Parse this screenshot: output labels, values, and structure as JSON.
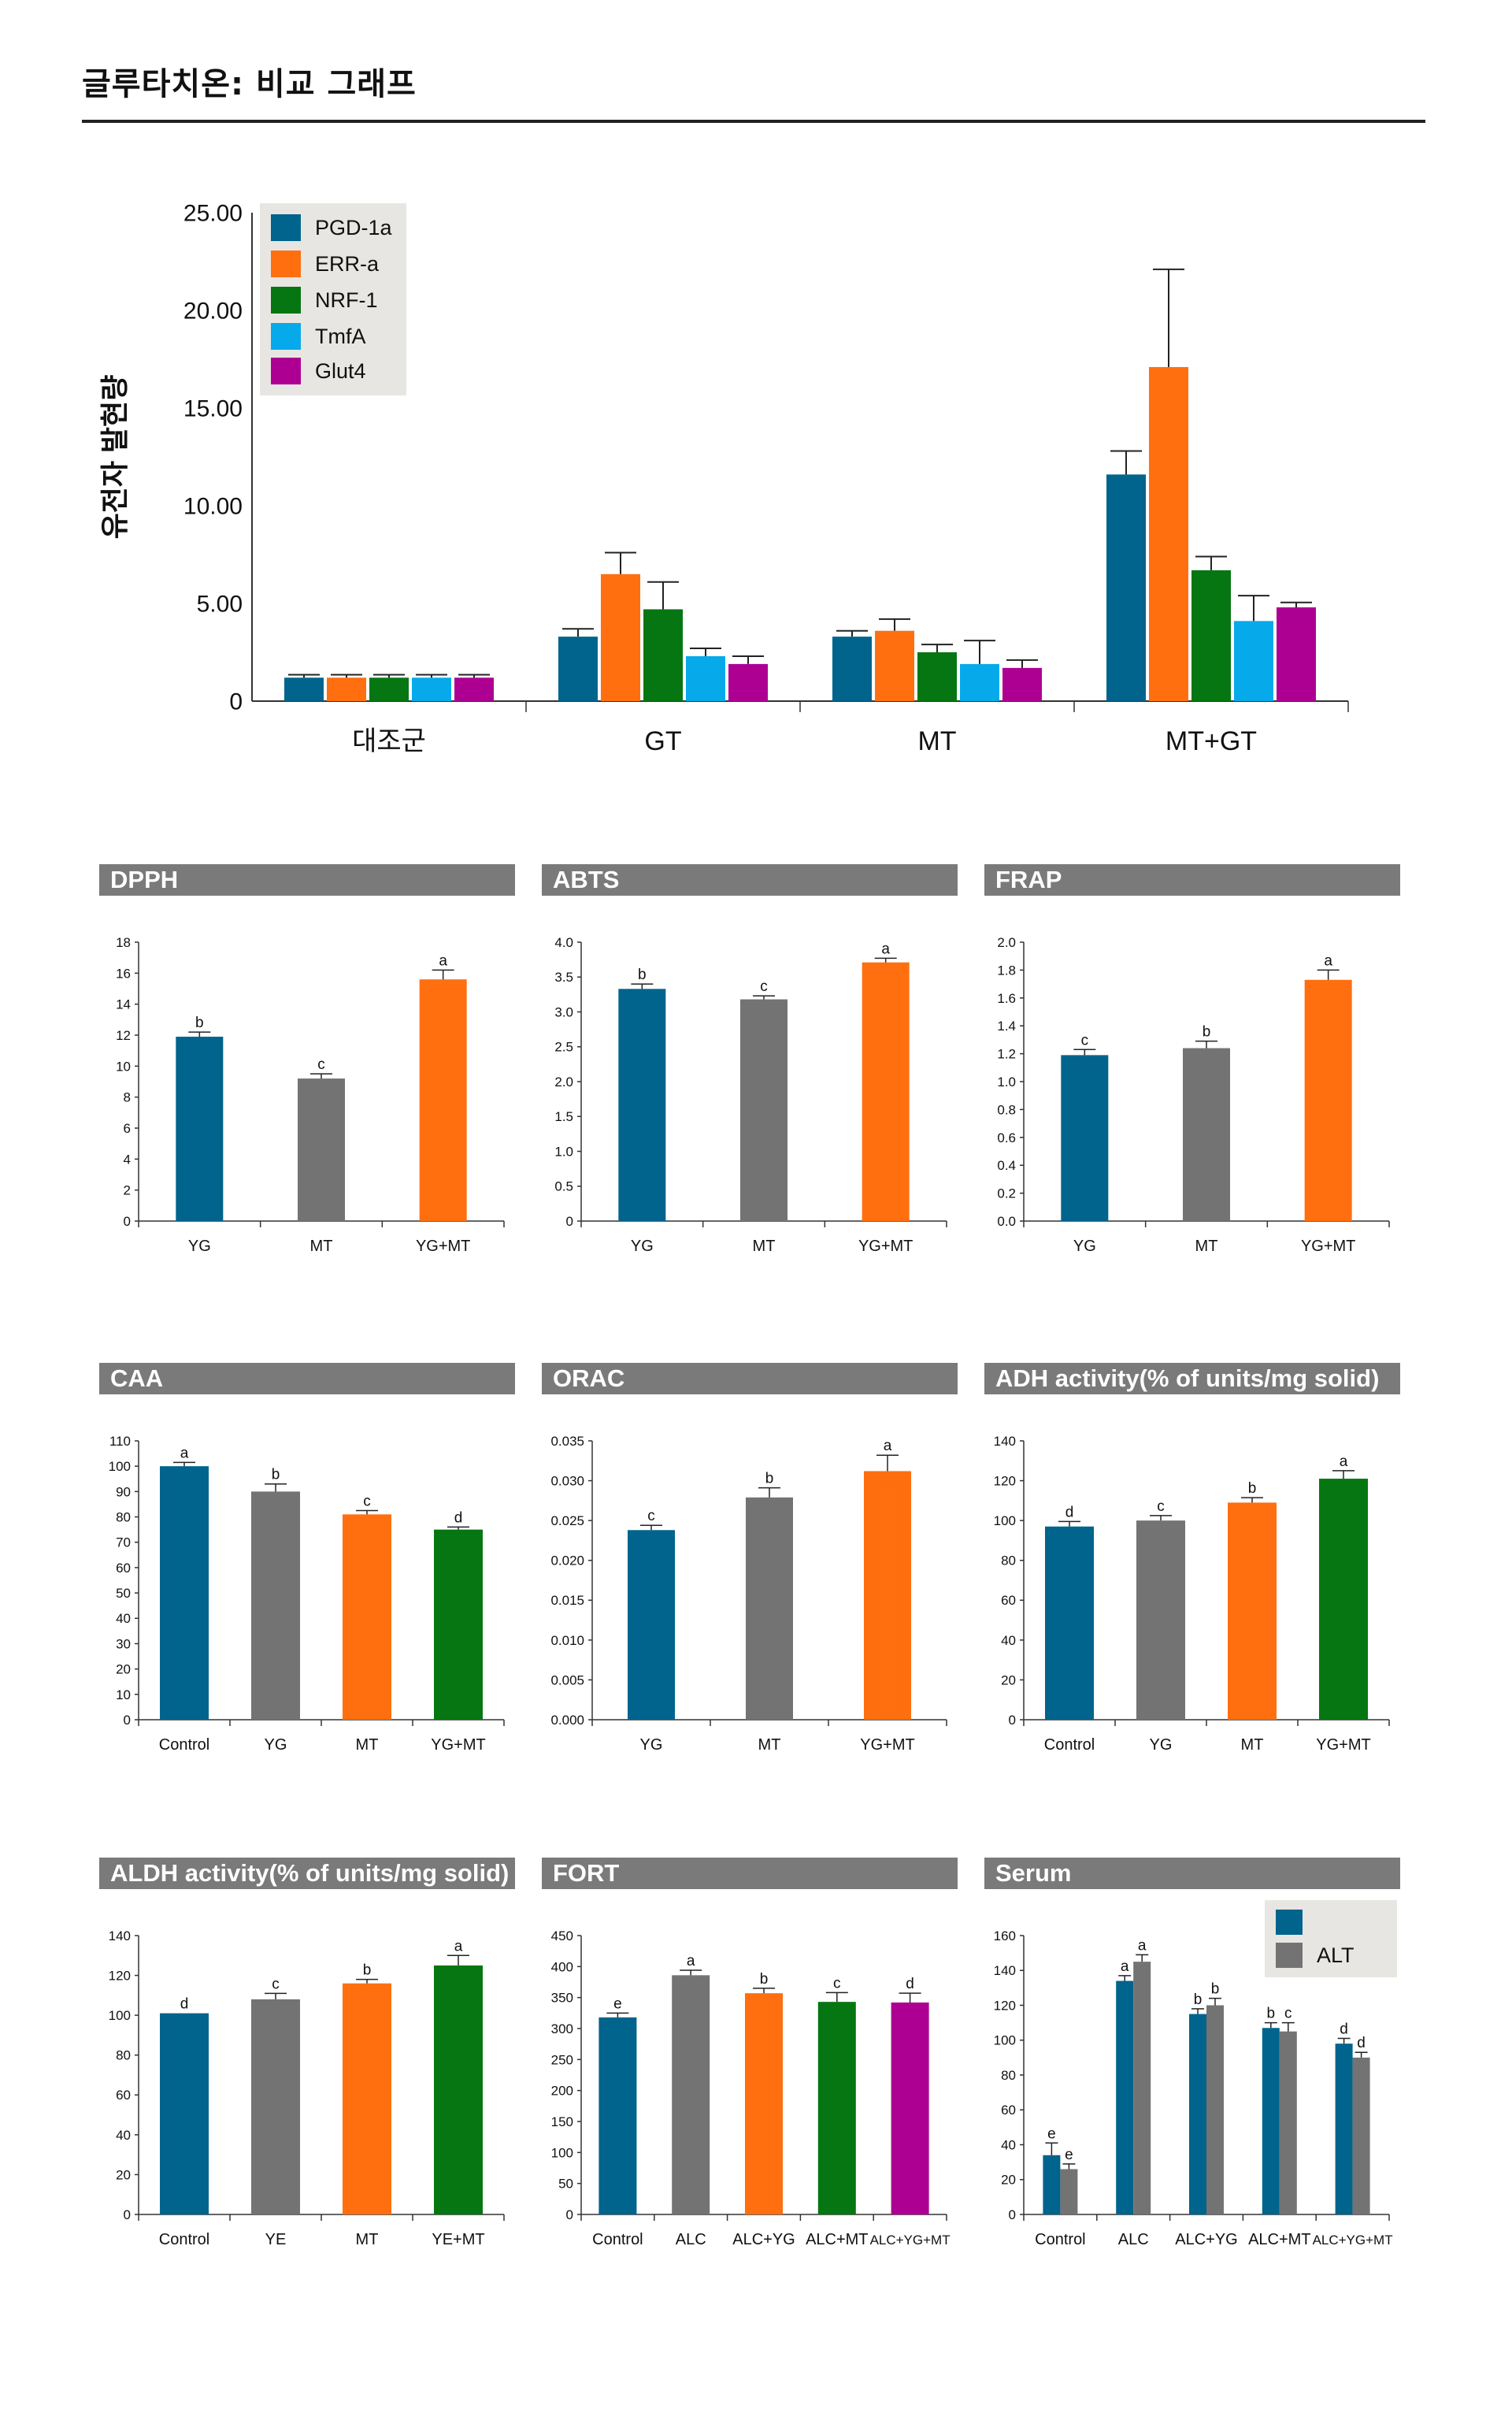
{
  "page": {
    "title": "글루타치온: 비교 그래프"
  },
  "colors": {
    "blue": "#00648c",
    "orange": "#ff6f0f",
    "green": "#067612",
    "cyan": "#06aaeb",
    "magenta": "#ad0092",
    "gray": "#737373",
    "header": "#7a7a7a"
  },
  "chart_data": [
    {
      "id": "main",
      "type": "bar",
      "title": "",
      "xlabel": "",
      "ylabel": "유전자 발현량",
      "categories": [
        "대조군",
        "GT",
        "MT",
        "MT+GT"
      ],
      "ylim": [
        0,
        25
      ],
      "yticks": [
        "0",
        "5.00",
        "10.00",
        "15.00",
        "20.00",
        "25.00"
      ],
      "legend_position": "top-left",
      "series": [
        {
          "name": "PGD-1a",
          "color": "blue",
          "values": [
            1.2,
            3.3,
            3.3,
            11.6
          ],
          "errors": [
            0.15,
            0.4,
            0.3,
            1.2
          ]
        },
        {
          "name": "ERR-a",
          "color": "orange",
          "values": [
            1.2,
            6.5,
            3.6,
            17.1
          ],
          "errors": [
            0.15,
            1.1,
            0.6,
            5.0
          ]
        },
        {
          "name": "NRF-1",
          "color": "green",
          "values": [
            1.2,
            4.7,
            2.5,
            6.7
          ],
          "errors": [
            0.15,
            1.4,
            0.4,
            0.7
          ]
        },
        {
          "name": "TmfA",
          "color": "cyan",
          "values": [
            1.2,
            2.3,
            1.9,
            4.1
          ],
          "errors": [
            0.15,
            0.4,
            1.2,
            1.3
          ]
        },
        {
          "name": "Glut4",
          "color": "magenta",
          "values": [
            1.2,
            1.9,
            1.7,
            4.8
          ],
          "errors": [
            0.15,
            0.4,
            0.4,
            0.25
          ]
        }
      ]
    },
    {
      "id": "dpph",
      "type": "bar",
      "title": "DPPH",
      "categories": [
        "YG",
        "MT",
        "YG+MT"
      ],
      "ylim": [
        0,
        18
      ],
      "yticks": [
        "0",
        "2",
        "4",
        "6",
        "8",
        "10",
        "12",
        "14",
        "16",
        "18"
      ],
      "series": [
        {
          "values": [
            11.9,
            9.2,
            15.6
          ],
          "errors": [
            0.3,
            0.3,
            0.6
          ],
          "labels": [
            "b",
            "c",
            "a"
          ],
          "colors": [
            "blue",
            "gray",
            "orange"
          ]
        }
      ]
    },
    {
      "id": "abts",
      "type": "bar",
      "title": "ABTS",
      "categories": [
        "YG",
        "MT",
        "YG+MT"
      ],
      "ylim": [
        0,
        4
      ],
      "yticks": [
        "0",
        "0.5",
        "1.0",
        "1.5",
        "2.0",
        "2.5",
        "3.0",
        "3.5",
        "4.0"
      ],
      "series": [
        {
          "values": [
            3.33,
            3.18,
            3.71
          ],
          "errors": [
            0.07,
            0.05,
            0.06
          ],
          "labels": [
            "b",
            "c",
            "a"
          ],
          "colors": [
            "blue",
            "gray",
            "orange"
          ]
        }
      ]
    },
    {
      "id": "frap",
      "type": "bar",
      "title": "FRAP",
      "categories": [
        "YG",
        "MT",
        "YG+MT"
      ],
      "ylim": [
        0,
        2
      ],
      "yticks": [
        "0.0",
        "0.2",
        "0.4",
        "0.6",
        "0.8",
        "1.0",
        "1.2",
        "1.4",
        "1.6",
        "1.8",
        "2.0"
      ],
      "series": [
        {
          "values": [
            1.19,
            1.24,
            1.73
          ],
          "errors": [
            0.04,
            0.05,
            0.07
          ],
          "labels": [
            "c",
            "b",
            "a"
          ],
          "colors": [
            "blue",
            "gray",
            "orange"
          ]
        }
      ]
    },
    {
      "id": "caa",
      "type": "bar",
      "title": "CAA",
      "categories": [
        "Control",
        "YG",
        "MT",
        "YG+MT"
      ],
      "ylim": [
        0,
        110
      ],
      "yticks": [
        "0",
        "10",
        "20",
        "30",
        "40",
        "50",
        "60",
        "70",
        "80",
        "90",
        "100",
        "110"
      ],
      "series": [
        {
          "values": [
            100,
            90,
            81,
            75
          ],
          "errors": [
            1.5,
            3,
            1.5,
            1
          ],
          "labels": [
            "a",
            "b",
            "c",
            "d"
          ],
          "colors": [
            "blue",
            "gray",
            "orange",
            "green"
          ]
        }
      ]
    },
    {
      "id": "orac",
      "type": "bar",
      "title": "ORAC",
      "categories": [
        "YG",
        "MT",
        "YG+MT"
      ],
      "ylim": [
        0,
        0.035
      ],
      "yticks": [
        "0.000",
        "0.005",
        "0.010",
        "0.015",
        "0.020",
        "0.025",
        "0.030",
        "0.035"
      ],
      "series": [
        {
          "values": [
            0.0238,
            0.0279,
            0.0312
          ],
          "errors": [
            0.0006,
            0.0012,
            0.002
          ],
          "labels": [
            "c",
            "b",
            "a"
          ],
          "colors": [
            "blue",
            "gray",
            "orange"
          ]
        }
      ]
    },
    {
      "id": "adh",
      "type": "bar",
      "title": "ADH activity(% of units/mg solid)",
      "categories": [
        "Control",
        "YG",
        "MT",
        "YG+MT"
      ],
      "ylim": [
        0,
        140
      ],
      "yticks": [
        "0",
        "20",
        "40",
        "60",
        "80",
        "100",
        "120",
        "140"
      ],
      "series": [
        {
          "values": [
            97,
            100,
            109,
            121
          ],
          "errors": [
            2.5,
            2.5,
            2.5,
            4
          ],
          "labels": [
            "d",
            "c",
            "b",
            "a"
          ],
          "colors": [
            "blue",
            "gray",
            "orange",
            "green"
          ]
        }
      ]
    },
    {
      "id": "aldh",
      "type": "bar",
      "title": "ALDH activity(% of units/mg solid)",
      "categories": [
        "Control",
        "YE",
        "MT",
        "YE+MT"
      ],
      "ylim": [
        0,
        140
      ],
      "yticks": [
        "0",
        "20",
        "40",
        "60",
        "80",
        "100",
        "120",
        "140"
      ],
      "series": [
        {
          "values": [
            101,
            108,
            116,
            125
          ],
          "errors": [
            0,
            3,
            2,
            5
          ],
          "labels": [
            "d",
            "c",
            "b",
            "a"
          ],
          "colors": [
            "blue",
            "gray",
            "orange",
            "green"
          ]
        }
      ]
    },
    {
      "id": "fort",
      "type": "bar",
      "title": "FORT",
      "categories": [
        "Control",
        "ALC",
        "ALC+YG",
        "ALC+MT",
        "ALC+YG+MT"
      ],
      "ylim": [
        0,
        450
      ],
      "yticks": [
        "0",
        "50",
        "100",
        "150",
        "200",
        "250",
        "300",
        "350",
        "400",
        "450"
      ],
      "series": [
        {
          "values": [
            318,
            386,
            357,
            343,
            342
          ],
          "errors": [
            7,
            8,
            8,
            15,
            15
          ],
          "labels": [
            "e",
            "a",
            "b",
            "c",
            "d"
          ],
          "colors": [
            "blue",
            "gray",
            "orange",
            "green",
            "magenta"
          ]
        }
      ]
    },
    {
      "id": "serum",
      "type": "bar",
      "title": "Serum",
      "categories": [
        "Control",
        "ALC",
        "ALC+YG",
        "ALC+MT",
        "ALC+YG+MT"
      ],
      "ylim": [
        0,
        160
      ],
      "yticks": [
        "0",
        "20",
        "40",
        "60",
        "80",
        "100",
        "120",
        "140",
        "160"
      ],
      "legend_position": "top-right",
      "series": [
        {
          "name": "",
          "color": "blue",
          "values": [
            34,
            134,
            115,
            107,
            98
          ],
          "errors": [
            7,
            3,
            3,
            3,
            3
          ],
          "labels": [
            "e",
            "a",
            "b",
            "b",
            "d"
          ]
        },
        {
          "name": "ALT",
          "color": "gray",
          "values": [
            26,
            145,
            120,
            105,
            90
          ],
          "errors": [
            3,
            4,
            4,
            5,
            3
          ],
          "labels": [
            "e",
            "a",
            "b",
            "c",
            "d"
          ]
        }
      ]
    }
  ]
}
